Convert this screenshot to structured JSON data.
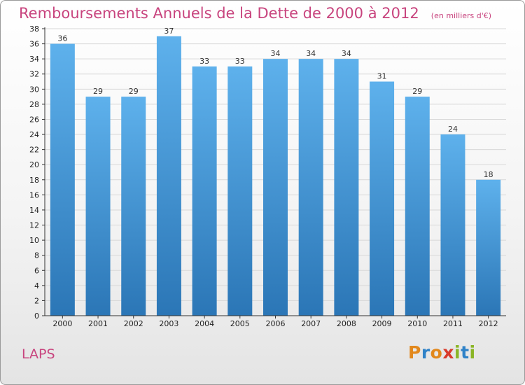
{
  "title": "Remboursements Annuels de la Dette de 2000 à 2012",
  "subtitle": "(en milliers d'€)",
  "commune": "LAPS",
  "logo": {
    "text": "Proxiti",
    "letters": [
      {
        "ch": "P",
        "color": "#e2881c"
      },
      {
        "ch": "r",
        "color": "#2f82c8"
      },
      {
        "ch": "o",
        "color": "#e2881c"
      },
      {
        "ch": "x",
        "color": "#d93a2b"
      },
      {
        "ch": "i",
        "color": "#8ab525"
      },
      {
        "ch": "t",
        "color": "#2f82c8"
      },
      {
        "ch": "i",
        "color": "#8ab525"
      }
    ]
  },
  "colors": {
    "bar_top": "#5eb1ec",
    "bar_bottom": "#2b76b6",
    "title": "#c8447e",
    "axis": "#333333",
    "grid": "#d8d8d8"
  },
  "chart_data": {
    "type": "bar",
    "categories": [
      "2000",
      "2001",
      "2002",
      "2003",
      "2004",
      "2005",
      "2006",
      "2007",
      "2008",
      "2009",
      "2010",
      "2011",
      "2012"
    ],
    "values": [
      36,
      29,
      29,
      37,
      33,
      33,
      34,
      34,
      34,
      31,
      29,
      24,
      18
    ],
    "ylim": [
      0,
      38
    ],
    "yticks": [
      0,
      2,
      4,
      6,
      8,
      10,
      12,
      14,
      16,
      18,
      20,
      22,
      24,
      26,
      28,
      30,
      32,
      34,
      36,
      38
    ],
    "grid": true,
    "data_labels": true
  }
}
